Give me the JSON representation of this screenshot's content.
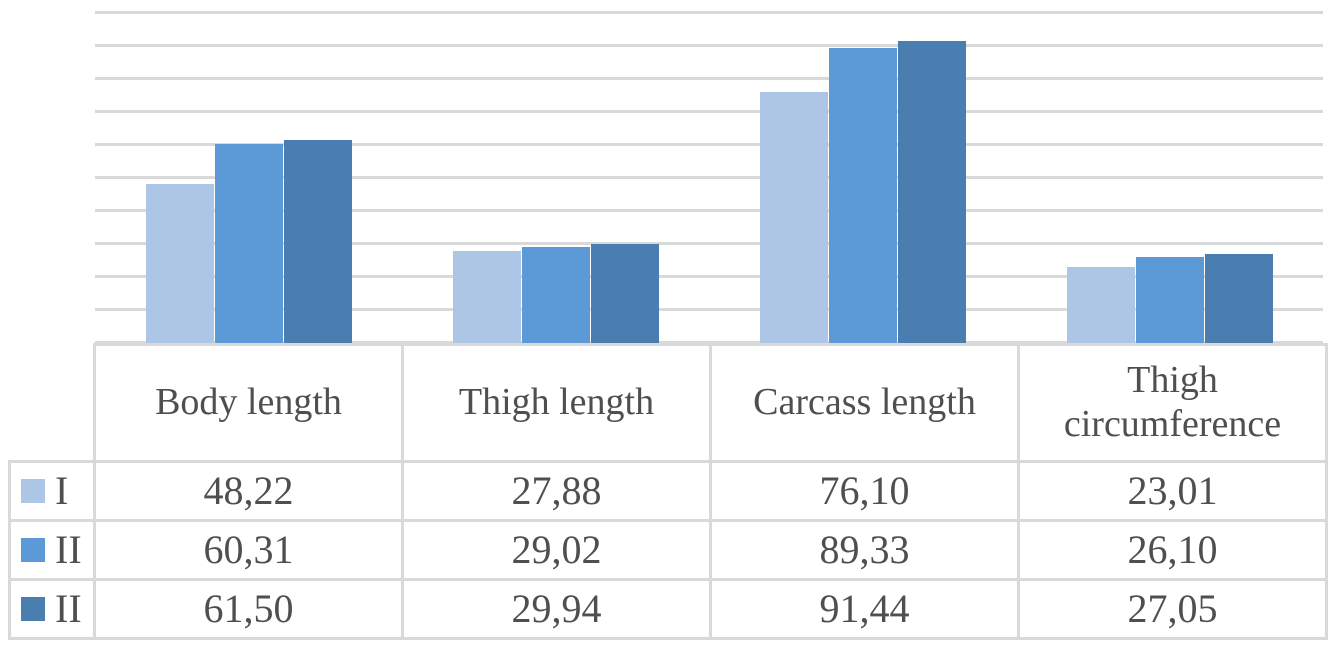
{
  "chart_data": {
    "type": "bar",
    "title": "",
    "xlabel": "",
    "ylabel": "",
    "categories": [
      "Body length",
      "Thigh length",
      "Carcass length",
      "Thigh circumference"
    ],
    "series": [
      {
        "name": "I",
        "color": "#aec6e6",
        "values": [
          48.22,
          27.88,
          76.1,
          23.01
        ],
        "display": [
          "48,22",
          "27,88",
          "76,10",
          "23,01"
        ]
      },
      {
        "name": "II",
        "color": "#5b9ad6",
        "values": [
          60.31,
          29.02,
          89.33,
          26.1
        ],
        "display": [
          "60,31",
          "29,02",
          "89,33",
          "26,10"
        ]
      },
      {
        "name": "II",
        "color": "#4a7db0",
        "values": [
          61.5,
          29.94,
          91.44,
          27.05
        ],
        "display": [
          "61,50",
          "29,94",
          "91,44",
          "27,05"
        ]
      }
    ],
    "ylim": [
      0,
      100
    ],
    "grid_step": 10,
    "grid": true,
    "gridline_color": "#d9d9d9",
    "axis_tick_labels_visible": false,
    "legend_position": "data-table-row-keys"
  },
  "table": {
    "corner_label": "",
    "columns": [
      "Body length",
      "Thigh length",
      "Carcass length",
      "Thigh circumference"
    ]
  },
  "colors": {
    "text": "#4f4f4f",
    "border": "#d9d9d9",
    "background": "#ffffff"
  }
}
